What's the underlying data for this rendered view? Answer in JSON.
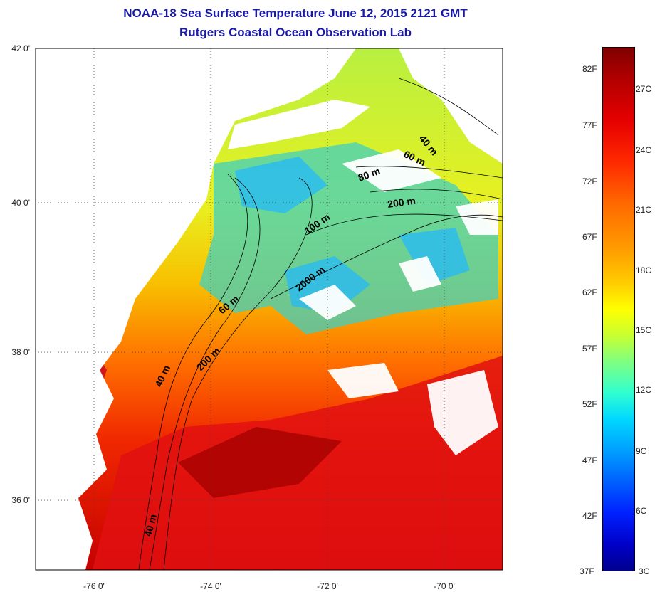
{
  "title": {
    "line1": "NOAA-18 Sea Surface Temperature June 12, 2015 2121 GMT",
    "line2": "Rutgers Coastal Ocean Observation Lab"
  },
  "axes": {
    "lat_labels": [
      "42 0'",
      "40 0'",
      "38 0'",
      "36 0'"
    ],
    "lon_labels": [
      "-76 0'",
      "-74 0'",
      "-72 0'",
      "-70 0'"
    ]
  },
  "contour_labels": [
    "40 m",
    "60 m",
    "80 m",
    "200 m",
    "100 m",
    "2000 m",
    "60 m",
    "200 m",
    "40 m",
    "40 m"
  ],
  "colorbar": {
    "fahrenheit": [
      "82F",
      "77F",
      "72F",
      "67F",
      "62F",
      "57F",
      "52F",
      "47F",
      "42F",
      "37F"
    ],
    "celsius": [
      "27C",
      "24C",
      "21C",
      "18C",
      "15C",
      "12C",
      "9C",
      "6C",
      "3C"
    ]
  },
  "colors": {
    "title": "#1a1aa8",
    "land": "#ffffff",
    "warm": "#e01010",
    "cool": "#20c8ff"
  }
}
